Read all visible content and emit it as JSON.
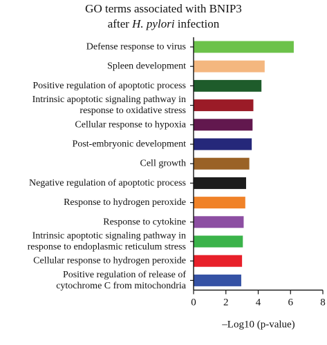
{
  "chart_data": {
    "type": "bar",
    "orientation": "horizontal",
    "title_line1": "GO terms associated with BNIP3",
    "title_line2_prefix": "after ",
    "title_line2_italic": "H. pylori",
    "title_line2_suffix": " infection",
    "xlabel": "–Log10 (p-value)",
    "xlim": [
      0,
      8
    ],
    "xticks": [
      0,
      2,
      4,
      6,
      8
    ],
    "grid": false,
    "legend": "none",
    "categories": [
      [
        "Defense response to virus"
      ],
      [
        "Spleen development"
      ],
      [
        "Positive regulation of apoptotic process"
      ],
      [
        "Intrinsic apoptotic signaling pathway in",
        "response to oxidative stress"
      ],
      [
        "Cellular response to hypoxia"
      ],
      [
        "Post-embryonic development"
      ],
      [
        "Cell growth"
      ],
      [
        "Negative regulation of apoptotic process"
      ],
      [
        "Response to hydrogen peroxide"
      ],
      [
        "Response to cytokine"
      ],
      [
        "Intrinsic apoptotic signaling pathway in",
        "response to endoplasmic reticulum stress"
      ],
      [
        "Cellular response to hydrogen peroxide"
      ],
      [
        "Positive regulation of release of",
        "cytochrome C from mitochondria"
      ]
    ],
    "values": [
      6.2,
      4.4,
      4.2,
      3.7,
      3.65,
      3.6,
      3.45,
      3.25,
      3.2,
      3.1,
      3.05,
      3.0,
      2.95
    ],
    "colors": [
      "#6cc24a",
      "#f4b77f",
      "#1e5c2b",
      "#9b1b27",
      "#62184e",
      "#25287a",
      "#9a6226",
      "#1c1c1c",
      "#f08228",
      "#8c4ea2",
      "#3bb34a",
      "#e8202a",
      "#3552a5"
    ]
  }
}
